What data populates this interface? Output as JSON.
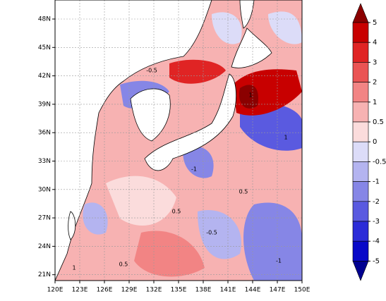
{
  "map": {
    "xticks": [
      "120E",
      "123E",
      "126E",
      "129E",
      "132E",
      "135E",
      "138E",
      "141E",
      "144E",
      "147E",
      "150E"
    ],
    "yticks": [
      "48N",
      "45N",
      "42N",
      "39N",
      "36N",
      "33N",
      "30N",
      "27N",
      "24N",
      "21N"
    ],
    "contour_labels": [
      "-0.5",
      "0.5",
      "-1",
      "1",
      "0.5",
      "-0.5",
      "1",
      "-1",
      "0.5",
      "1"
    ],
    "colorbar": {
      "levels": [
        5,
        4,
        3,
        2,
        1,
        0.5,
        0,
        -0.5,
        -1,
        -2,
        -3,
        -4,
        -5
      ],
      "colors": [
        "#8b0000",
        "#c80000",
        "#e02424",
        "#ea5454",
        "#f28484",
        "#f7b2b2",
        "#fbdcdc",
        "#dcdcf8",
        "#b4b4f0",
        "#8686e6",
        "#5a5ae0",
        "#2c2cd8",
        "#0808c8",
        "#000090"
      ]
    }
  }
}
